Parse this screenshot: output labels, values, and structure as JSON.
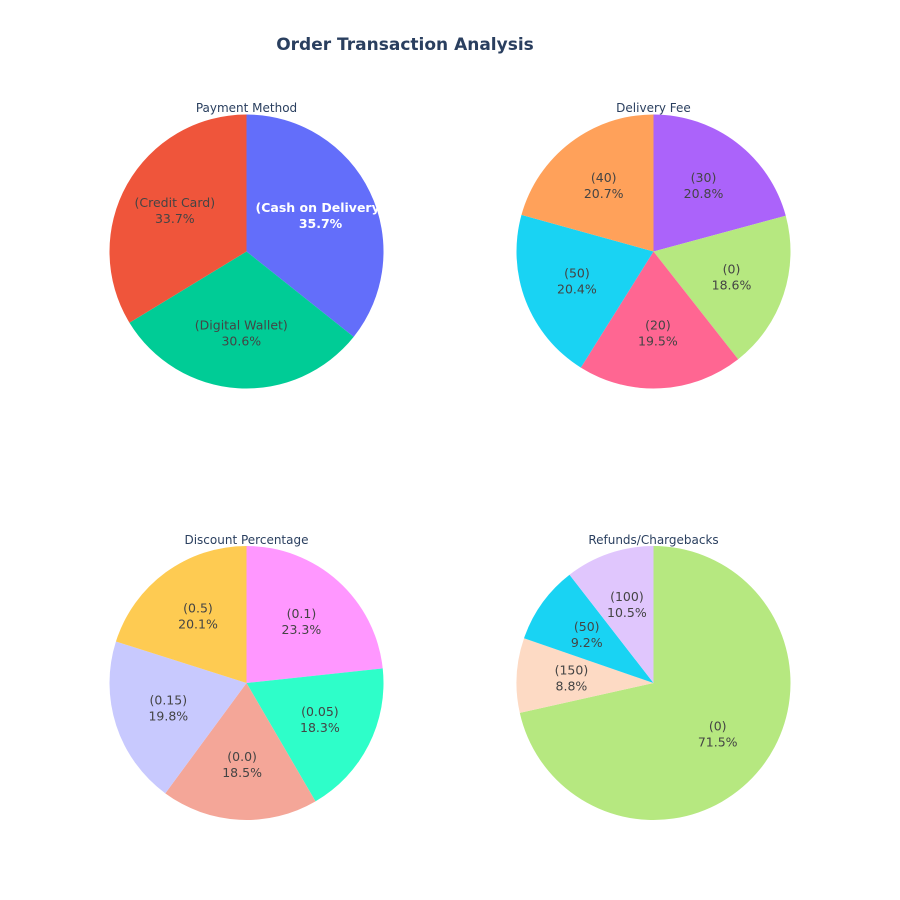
{
  "title": "Order Transaction Analysis",
  "chart_data": [
    {
      "type": "pie",
      "title": "Payment Method",
      "slices": [
        {
          "label": "(Cash on Delivery)",
          "percent_text": "35.7%",
          "value": 35.7,
          "color": "#636efa",
          "text_color": "#ffffff",
          "bold": true
        },
        {
          "label": "(Digital Wallet)",
          "percent_text": "30.6%",
          "value": 30.6,
          "color": "#00cc96",
          "text_color": "#444444",
          "bold": false
        },
        {
          "label": "(Credit Card)",
          "percent_text": "33.7%",
          "value": 33.7,
          "color": "#ef553b",
          "text_color": "#444444",
          "bold": false
        }
      ]
    },
    {
      "type": "pie",
      "title": "Delivery Fee",
      "slices": [
        {
          "label": "(30)",
          "percent_text": "20.8%",
          "value": 20.8,
          "color": "#ab63fa",
          "text_color": "#444444",
          "bold": false
        },
        {
          "label": "(0)",
          "percent_text": "18.6%",
          "value": 18.6,
          "color": "#b6e880",
          "text_color": "#444444",
          "bold": false
        },
        {
          "label": "(20)",
          "percent_text": "19.5%",
          "value": 19.5,
          "color": "#ff6692",
          "text_color": "#444444",
          "bold": false
        },
        {
          "label": "(50)",
          "percent_text": "20.4%",
          "value": 20.4,
          "color": "#19d3f3",
          "text_color": "#444444",
          "bold": false
        },
        {
          "label": "(40)",
          "percent_text": "20.7%",
          "value": 20.7,
          "color": "#ffa15a",
          "text_color": "#444444",
          "bold": false
        }
      ]
    },
    {
      "type": "pie",
      "title": "Discount Percentage",
      "slices": [
        {
          "label": "(0.1)",
          "percent_text": "23.3%",
          "value": 23.3,
          "color": "#ff97ff",
          "text_color": "#444444",
          "bold": false
        },
        {
          "label": "(0.05)",
          "percent_text": "18.3%",
          "value": 18.3,
          "color": "#2efec9",
          "text_color": "#444444",
          "bold": false
        },
        {
          "label": "(0.0)",
          "percent_text": "18.5%",
          "value": 18.5,
          "color": "#f4a698",
          "text_color": "#444444",
          "bold": false
        },
        {
          "label": "(0.15)",
          "percent_text": "19.8%",
          "value": 19.8,
          "color": "#c8c9fe",
          "text_color": "#444444",
          "bold": false
        },
        {
          "label": "(0.5)",
          "percent_text": "20.1%",
          "value": 20.1,
          "color": "#fecb52",
          "text_color": "#444444",
          "bold": false
        }
      ]
    },
    {
      "type": "pie",
      "title": "Refunds/Chargebacks",
      "slices": [
        {
          "label": "(0)",
          "percent_text": "71.5%",
          "value": 71.5,
          "color": "#b6e880",
          "text_color": "#444444",
          "bold": false
        },
        {
          "label": "(150)",
          "percent_text": "8.8%",
          "value": 8.8,
          "color": "#fddac4",
          "text_color": "#444444",
          "bold": false
        },
        {
          "label": "(50)",
          "percent_text": "9.2%",
          "value": 9.2,
          "color": "#19d3f3",
          "text_color": "#444444",
          "bold": false
        },
        {
          "label": "(100)",
          "percent_text": "10.5%",
          "value": 10.5,
          "color": "#e0c6fd",
          "text_color": "#444444",
          "bold": false
        }
      ]
    }
  ]
}
